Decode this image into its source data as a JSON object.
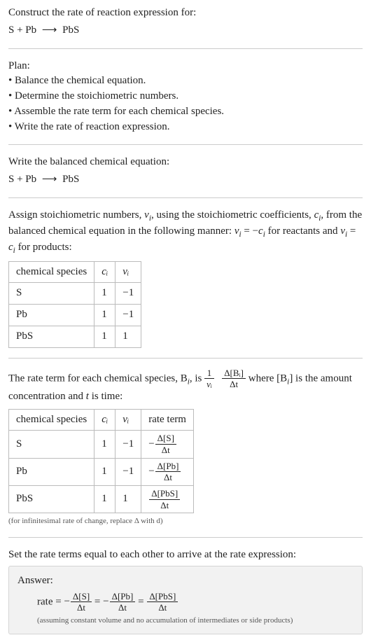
{
  "title": "Construct the rate of reaction expression for:",
  "reaction_lhs": "S + Pb",
  "reaction_arrow": "⟶",
  "reaction_rhs": "PbS",
  "plan_label": "Plan:",
  "plan_items": [
    "Balance the chemical equation.",
    "Determine the stoichiometric numbers.",
    "Assemble the rate term for each chemical species.",
    "Write the rate of reaction expression."
  ],
  "balanced_intro": "Write the balanced chemical equation:",
  "assign_text_a": "Assign stoichiometric numbers, ",
  "assign_nu_i": "ν",
  "assign_text_b": ", using the stoichiometric coefficients, ",
  "assign_c_i": "c",
  "assign_text_c": ", from the balanced chemical equation in the following manner: ",
  "assign_rel_react": " = −",
  "assign_text_d": " for reactants and ",
  "assign_rel_prod": " = ",
  "assign_text_e": " for products:",
  "table1": {
    "headers": [
      "chemical species",
      "cᵢ",
      "νᵢ"
    ],
    "rows": [
      [
        "S",
        "1",
        "−1"
      ],
      [
        "Pb",
        "1",
        "−1"
      ],
      [
        "PbS",
        "1",
        "1"
      ]
    ]
  },
  "rate_para_a": "The rate term for each chemical species, B",
  "rate_para_b": ", is ",
  "rate_para_c": " where [B",
  "rate_para_d": "] is the amount concentration and ",
  "rate_para_t": "t",
  "rate_para_e": " is time:",
  "frac1": {
    "num": "1",
    "den": "νᵢ"
  },
  "frac2": {
    "num": "Δ[Bᵢ]",
    "den": "Δt"
  },
  "table2": {
    "headers": [
      "chemical species",
      "cᵢ",
      "νᵢ",
      "rate term"
    ],
    "rows": [
      {
        "species": "S",
        "c": "1",
        "nu": "−1",
        "sign": "−",
        "num": "Δ[S]",
        "den": "Δt"
      },
      {
        "species": "Pb",
        "c": "1",
        "nu": "−1",
        "sign": "−",
        "num": "Δ[Pb]",
        "den": "Δt"
      },
      {
        "species": "PbS",
        "c": "1",
        "nu": "1",
        "sign": "",
        "num": "Δ[PbS]",
        "den": "Δt"
      }
    ],
    "note": "(for infinitesimal rate of change, replace Δ with d)"
  },
  "set_equal": "Set the rate terms equal to each other to arrive at the rate expression:",
  "answer_label": "Answer:",
  "answer_eq": {
    "lead": "rate = ",
    "t1": {
      "sign": "−",
      "num": "Δ[S]",
      "den": "Δt"
    },
    "eq1": " = ",
    "t2": {
      "sign": "−",
      "num": "Δ[Pb]",
      "den": "Δt"
    },
    "eq2": " = ",
    "t3": {
      "sign": "",
      "num": "Δ[PbS]",
      "den": "Δt"
    }
  },
  "answer_assume": "(assuming constant volume and no accumulation of intermediates or side products)"
}
